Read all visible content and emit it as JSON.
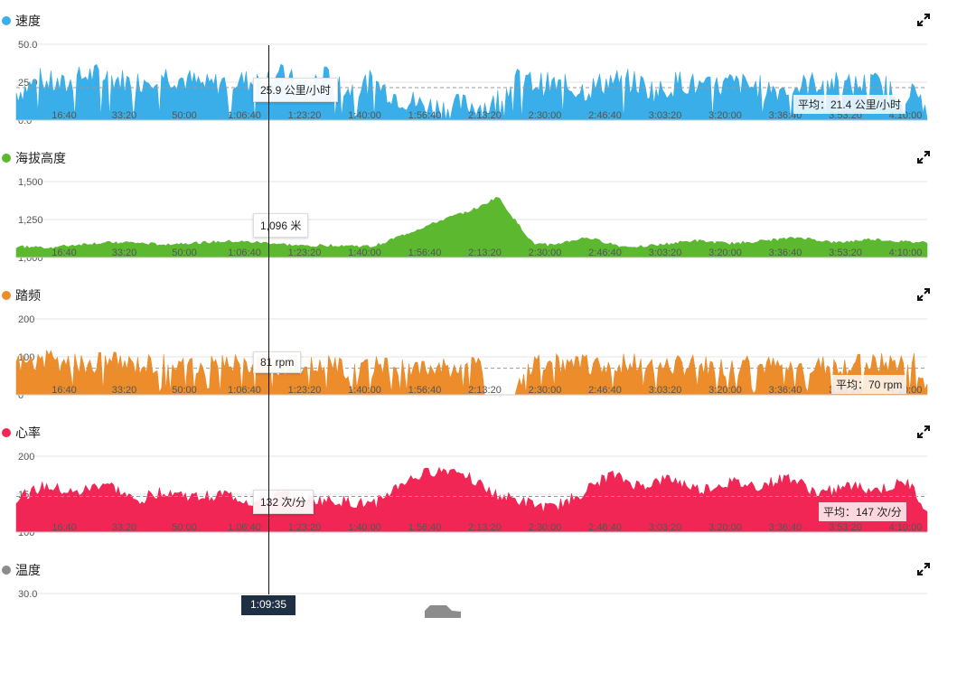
{
  "colors": {
    "speed": "#39aee8",
    "altitude": "#5cb82e",
    "cadence": "#ec8c2a",
    "heart_rate": "#f22654",
    "temperature": "#8c8c8c"
  },
  "cursor": {
    "time": "1:09:35"
  },
  "x_ticks": [
    "16:40",
    "33:20",
    "50:00",
    "1:06:40",
    "1:23:20",
    "1:40:00",
    "1:56:40",
    "2:13:20",
    "2:30:00",
    "2:46:40",
    "3:03:20",
    "3:20:00",
    "3:36:40",
    "3:53:20",
    "4:10:00"
  ],
  "panels": {
    "speed": {
      "title": "速度",
      "tooltip": "25.9 公里/小时",
      "avg_label": "平均：21.4 公里/小时"
    },
    "altitude": {
      "title": "海拔高度",
      "tooltip": "1,096 米"
    },
    "cadence": {
      "title": "踏频",
      "tooltip": "81 rpm",
      "avg_label": "平均：70 rpm"
    },
    "heart_rate": {
      "title": "心率",
      "tooltip": "132 次/分",
      "avg_label": "平均：147 次/分"
    },
    "temperature": {
      "title": "温度"
    }
  },
  "chart_data": [
    {
      "type": "area",
      "name": "speed",
      "title": "速度",
      "x_unit": "seconds",
      "x_range": [
        0,
        15330
      ],
      "ylim": [
        0,
        50
      ],
      "yticks": [
        "0.0",
        "25.0",
        "50.0"
      ],
      "average": 21.4,
      "cursor": {
        "x": 4175,
        "value": 25.9
      },
      "x": [
        0,
        400,
        800,
        1200,
        1600,
        2000,
        2400,
        2800,
        3200,
        3600,
        4000,
        4400,
        4800,
        5200,
        5600,
        6000,
        6400,
        6800,
        7200,
        7600,
        8000,
        8400,
        8800,
        9200,
        9600,
        10000,
        10400,
        10800,
        11200,
        11600,
        12000,
        12400,
        12800,
        13200,
        13600,
        14000,
        14400,
        14800,
        15330
      ],
      "y": [
        18,
        26,
        22,
        30,
        28,
        24,
        31,
        27,
        22,
        26,
        25,
        30,
        22,
        28,
        20,
        25,
        16,
        10,
        8,
        10,
        9,
        26,
        24,
        22,
        20,
        26,
        25,
        18,
        26,
        20,
        24,
        22,
        20,
        22,
        26,
        22,
        24,
        20,
        14
      ]
    },
    {
      "type": "area",
      "name": "altitude",
      "title": "海拔高度",
      "x_unit": "seconds",
      "x_range": [
        0,
        15330
      ],
      "ylim": [
        1000,
        1500
      ],
      "yticks": [
        "1,000",
        "1,250",
        "1,500"
      ],
      "cursor": {
        "x": 4175,
        "value": 1096
      },
      "x": [
        0,
        600,
        1200,
        1800,
        2400,
        3000,
        3600,
        4200,
        4800,
        5400,
        6000,
        6600,
        7200,
        7800,
        8100,
        8400,
        8700,
        9000,
        9600,
        10200,
        10800,
        11400,
        12000,
        12600,
        13200,
        13800,
        14400,
        15000,
        15330
      ],
      "y": [
        1070,
        1065,
        1090,
        1100,
        1085,
        1095,
        1105,
        1096,
        1075,
        1080,
        1070,
        1160,
        1250,
        1330,
        1400,
        1240,
        1090,
        1080,
        1130,
        1070,
        1080,
        1110,
        1090,
        1110,
        1130,
        1095,
        1120,
        1100,
        1100
      ]
    },
    {
      "type": "area",
      "name": "cadence",
      "title": "踏频",
      "x_unit": "seconds",
      "x_range": [
        0,
        15330
      ],
      "ylim": [
        0,
        200
      ],
      "yticks": [
        "0",
        "100",
        "200"
      ],
      "average": 70,
      "cursor": {
        "x": 4175,
        "value": 81
      },
      "x": [
        0,
        500,
        1000,
        1500,
        2000,
        2500,
        3000,
        3500,
        4000,
        4500,
        5000,
        5500,
        6000,
        6500,
        7000,
        7500,
        7800,
        7900,
        8400,
        8600,
        9000,
        9500,
        10000,
        10500,
        11000,
        11500,
        12000,
        12500,
        13000,
        13500,
        14000,
        14500,
        15000,
        15100,
        15330
      ],
      "y": [
        85,
        90,
        80,
        88,
        82,
        86,
        78,
        84,
        81,
        75,
        80,
        70,
        72,
        75,
        70,
        72,
        70,
        0,
        0,
        75,
        80,
        78,
        82,
        80,
        76,
        79,
        74,
        80,
        70,
        78,
        80,
        82,
        90,
        95,
        20
      ]
    },
    {
      "type": "area",
      "name": "heart_rate",
      "title": "心率",
      "x_unit": "seconds",
      "x_range": [
        0,
        15330
      ],
      "ylim": [
        100,
        200
      ],
      "yticks": [
        "100",
        "150",
        "200"
      ],
      "average": 147,
      "cursor": {
        "x": 4175,
        "value": 132
      },
      "x": [
        0,
        500,
        1000,
        1500,
        2000,
        2500,
        3000,
        3500,
        4000,
        4500,
        5000,
        5500,
        6000,
        6500,
        7000,
        7500,
        8000,
        8500,
        9000,
        9500,
        10000,
        10500,
        11000,
        11500,
        12000,
        12500,
        13000,
        13500,
        14000,
        14500,
        15000,
        15330
      ],
      "y": [
        145,
        160,
        150,
        165,
        140,
        155,
        145,
        150,
        138,
        150,
        142,
        140,
        135,
        165,
        180,
        182,
        150,
        140,
        130,
        150,
        175,
        160,
        170,
        155,
        165,
        160,
        172,
        150,
        160,
        155,
        165,
        130
      ]
    },
    {
      "type": "area",
      "name": "temperature",
      "title": "温度",
      "x_unit": "seconds",
      "x_range": [
        0,
        15330
      ],
      "yticks": [
        "30.0"
      ]
    }
  ]
}
